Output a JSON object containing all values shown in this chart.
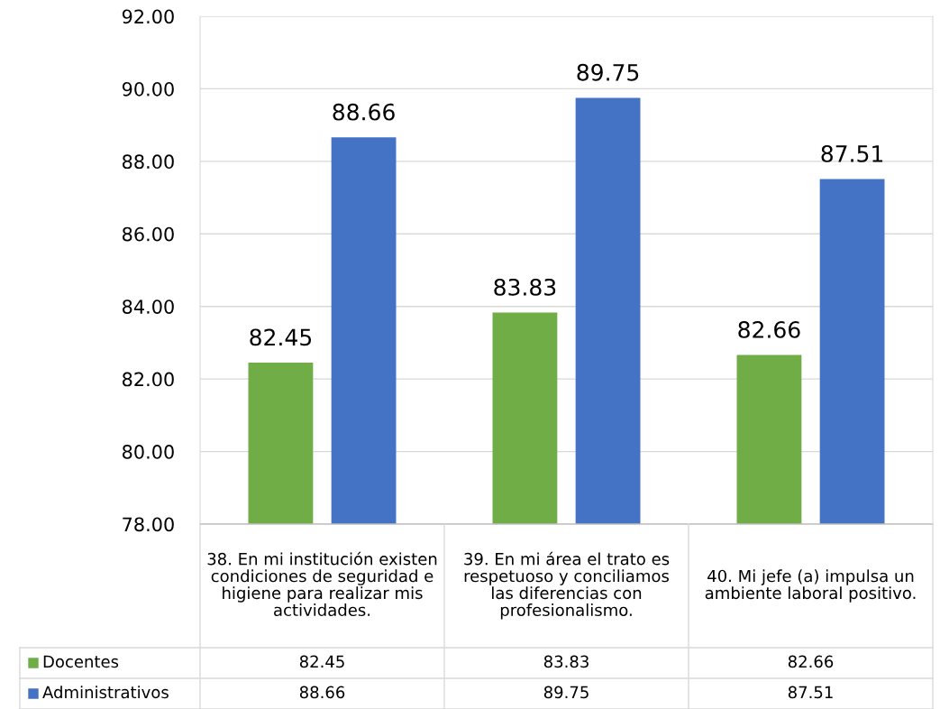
{
  "chart_data": {
    "type": "bar",
    "categories": [
      "38. En mi institución existen condiciones de seguridad e higiene para realizar mis actividades.",
      "39. En mi área el trato es respetuoso y conciliamos las diferencias con profesionalismo.",
      "40. Mi jefe (a) impulsa un ambiente laboral positivo."
    ],
    "series": [
      {
        "name": "Docentes",
        "color": "#70ad47",
        "values": [
          82.45,
          83.83,
          82.66
        ],
        "value_labels": [
          "82.45",
          "83.83",
          "82.66"
        ]
      },
      {
        "name": "Administrativos",
        "color": "#4472c4",
        "values": [
          88.66,
          89.75,
          87.51
        ],
        "value_labels": [
          "88.66",
          "89.75",
          "87.51"
        ]
      }
    ],
    "ylim": [
      78,
      92
    ],
    "yticks": [
      {
        "value": 78,
        "label": "78.00"
      },
      {
        "value": 80,
        "label": "80.00"
      },
      {
        "value": 82,
        "label": "82.00"
      },
      {
        "value": 84,
        "label": "84.00"
      },
      {
        "value": 86,
        "label": "86.00"
      },
      {
        "value": 88,
        "label": "88.00"
      },
      {
        "value": 90,
        "label": "90.00"
      },
      {
        "value": 92,
        "label": "92.00"
      }
    ],
    "grid": "y",
    "annotations": [
      "82.45",
      "83.83",
      "82.66",
      "88.66",
      "89.75",
      "87.51"
    ],
    "legend": "bottom"
  }
}
